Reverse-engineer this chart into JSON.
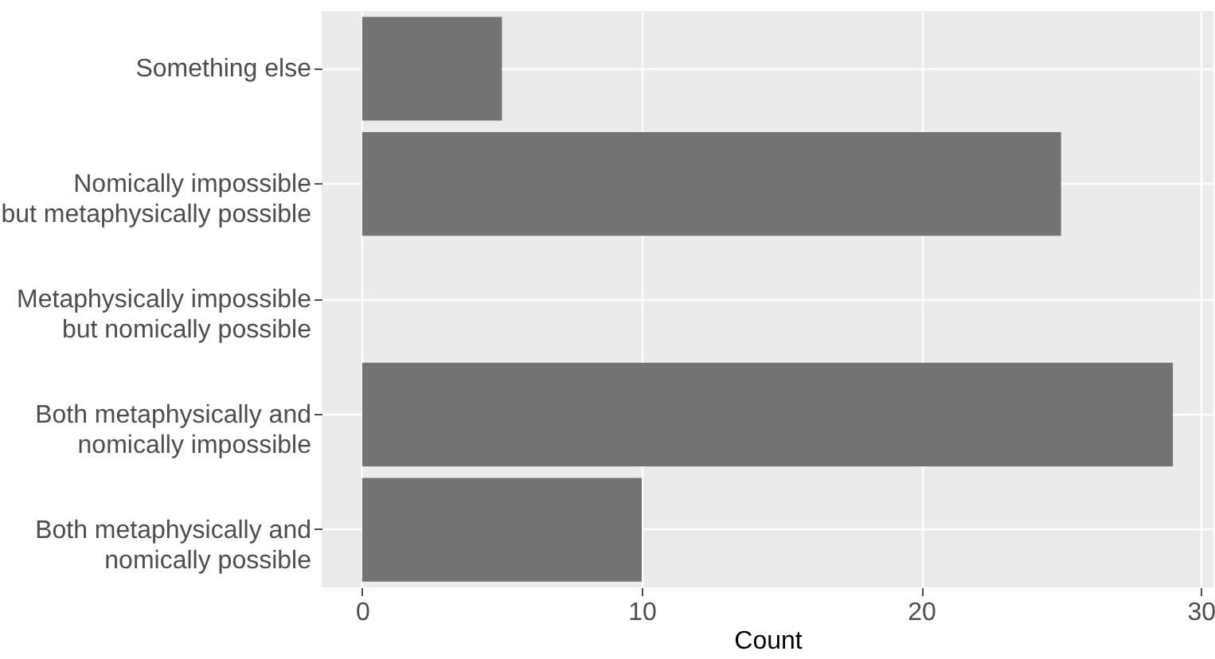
{
  "chart_data": {
    "type": "bar",
    "orientation": "horizontal",
    "xlabel": "Count",
    "categories": [
      "Something else",
      "Nomically impossible\nbut metaphysically possible",
      "Metaphysically impossible\nbut nomically possible",
      "Both metaphysically and\nnomically impossible",
      "Both metaphysically and\nnomically possible"
    ],
    "values": [
      5,
      25,
      0,
      29,
      10
    ],
    "color": "#737373",
    "xlim": [
      -1.45,
      30.45
    ],
    "xticks": [
      0,
      10,
      20,
      30
    ],
    "grid": true
  }
}
